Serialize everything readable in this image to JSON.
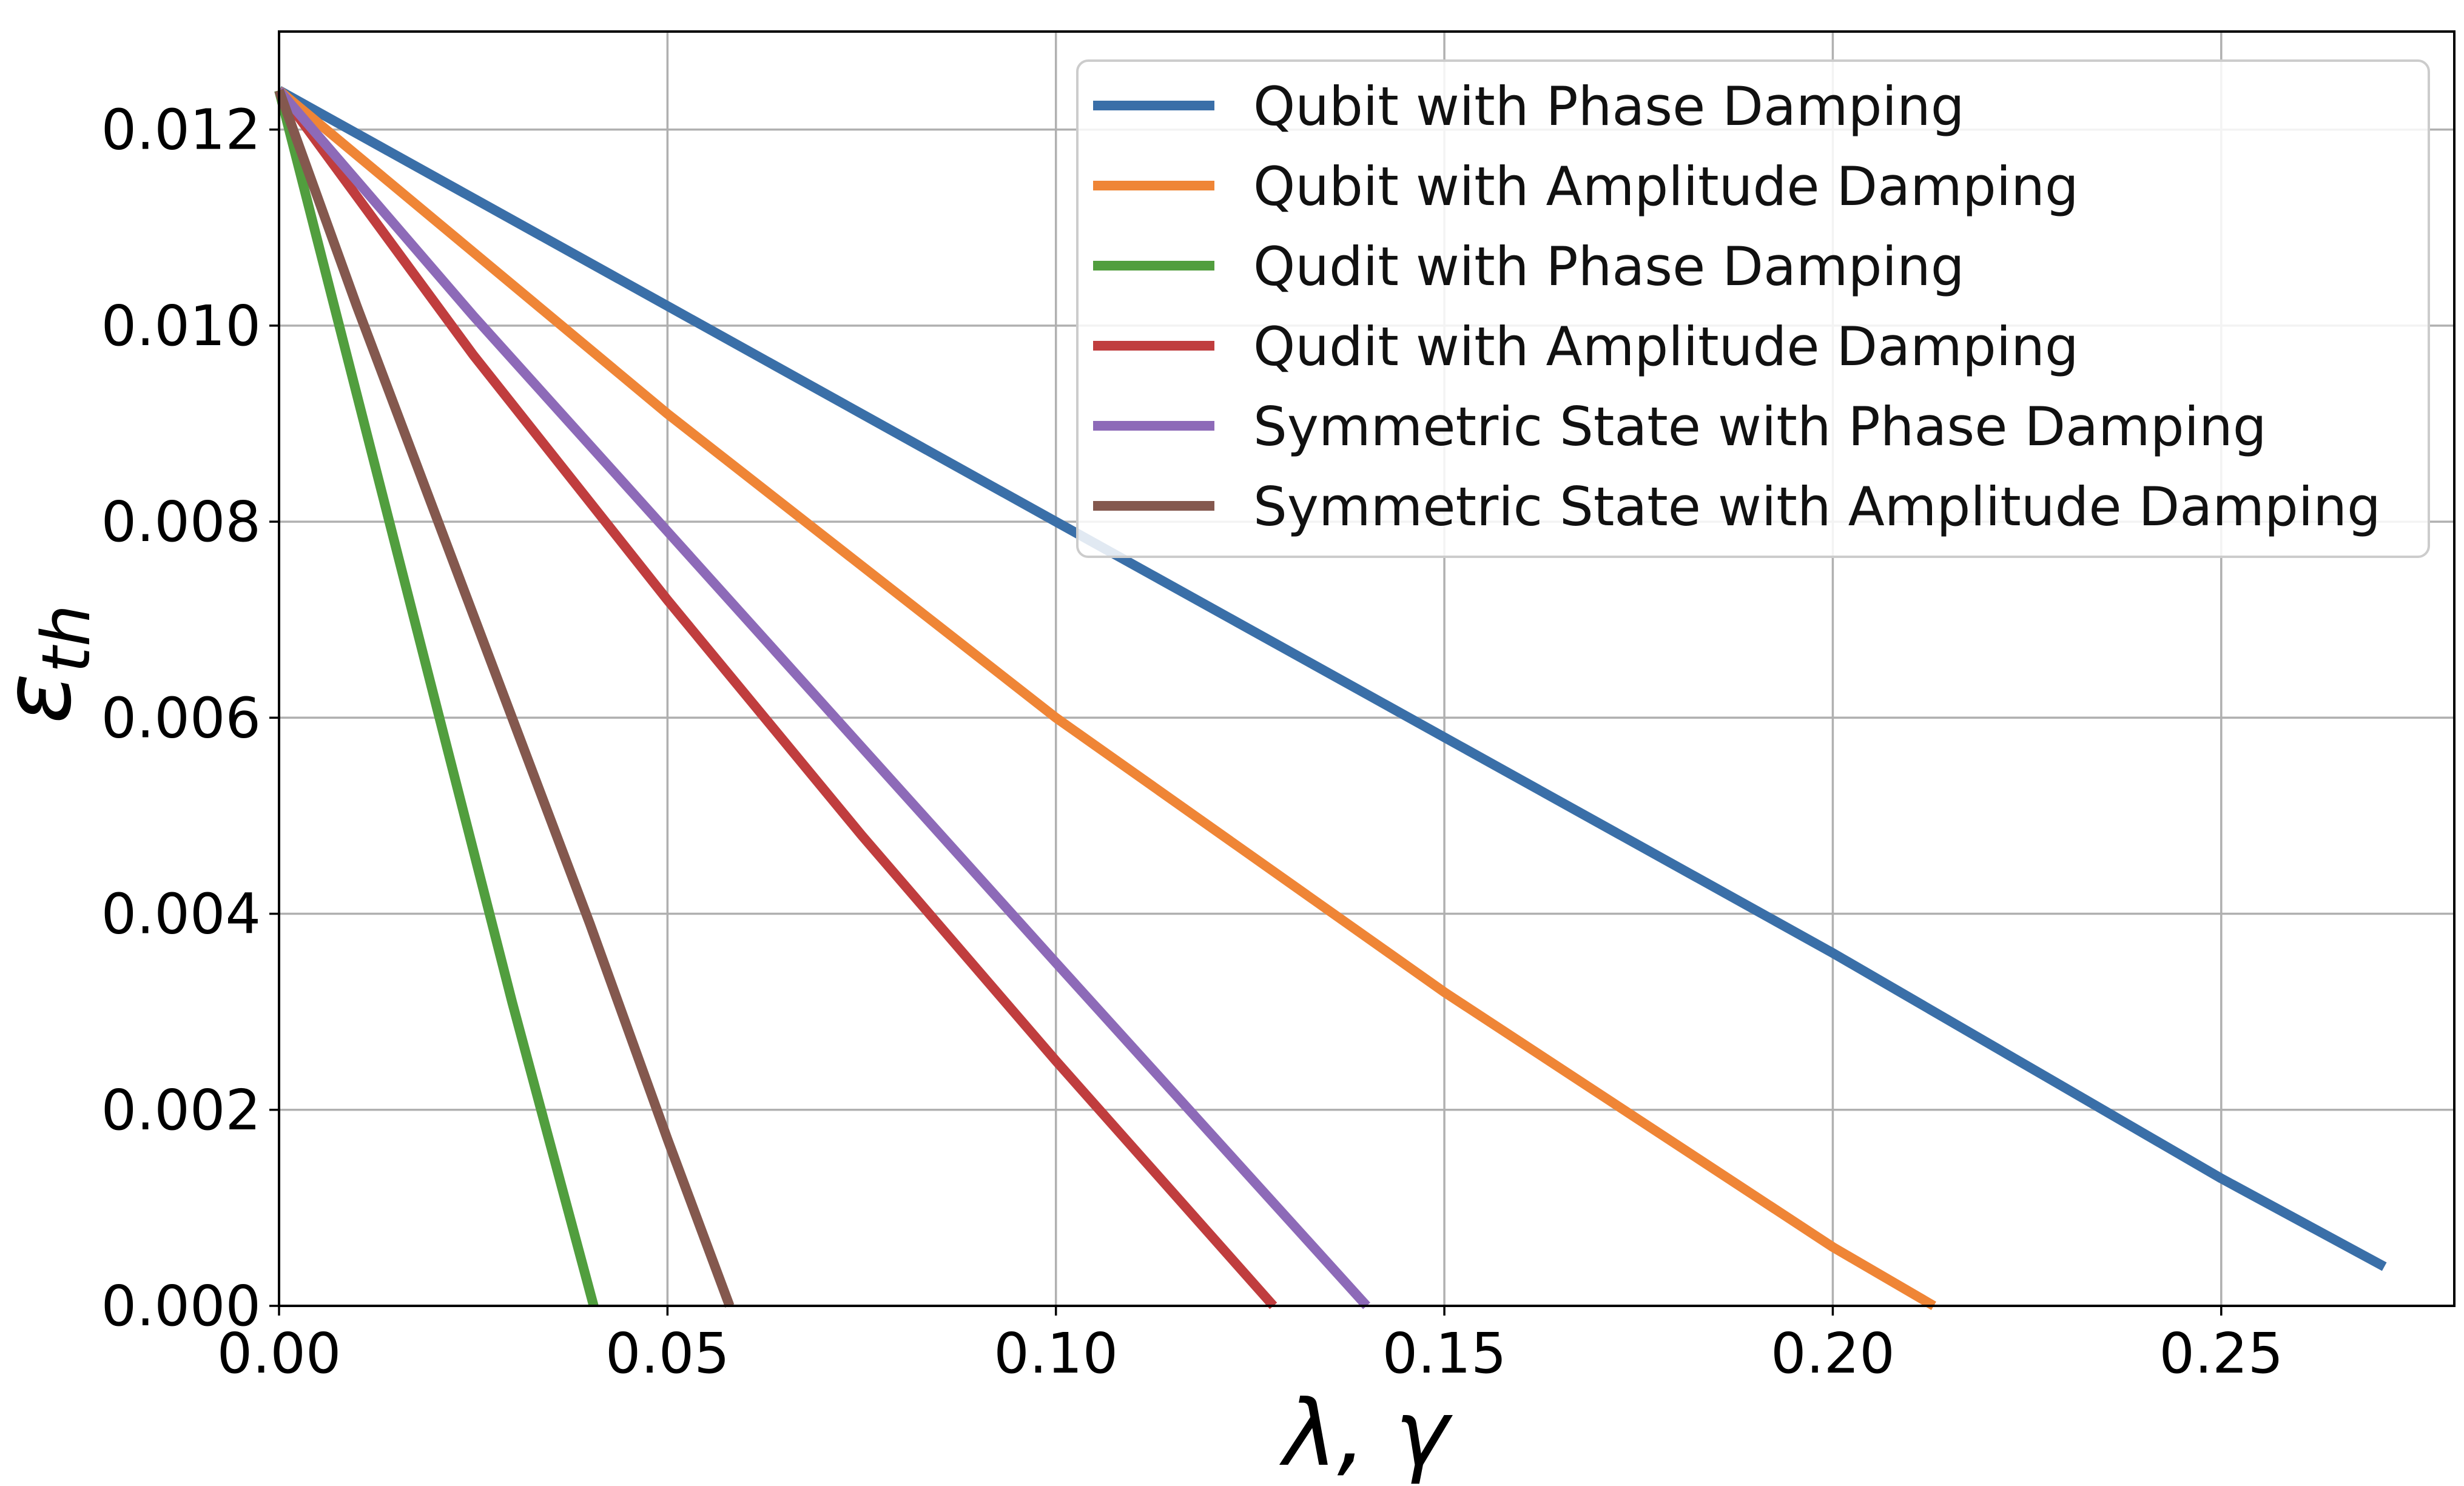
{
  "chart_data": {
    "type": "line",
    "title": "",
    "xlabel": "λ, γ",
    "ylabel": {
      "base": "ε",
      "sub": "th"
    },
    "xlim": [
      0,
      0.28
    ],
    "ylim": [
      0,
      0.013
    ],
    "xticks": [
      0.0,
      0.05,
      0.1,
      0.15,
      0.2,
      0.25
    ],
    "xtick_labels": [
      "0.00",
      "0.05",
      "0.10",
      "0.15",
      "0.20",
      "0.25"
    ],
    "yticks": [
      0.0,
      0.002,
      0.004,
      0.006,
      0.008,
      0.01,
      0.012
    ],
    "ytick_labels": [
      "0.000",
      "0.002",
      "0.004",
      "0.006",
      "0.008",
      "0.010",
      "0.012"
    ],
    "grid": true,
    "legend_position": "top-right",
    "series": [
      {
        "name": "Qubit with Phase Damping",
        "color": "#3a6fa8",
        "x": [
          0.0,
          0.05,
          0.1,
          0.15,
          0.2,
          0.25,
          0.271
        ],
        "y": [
          0.0124,
          0.0102,
          0.008,
          0.0058,
          0.0036,
          0.0013,
          0.0004
        ]
      },
      {
        "name": "Qubit with Amplitude Damping",
        "color": "#ef8536",
        "x": [
          0.0,
          0.05,
          0.1,
          0.15,
          0.2,
          0.213
        ],
        "y": [
          0.0124,
          0.0091,
          0.006,
          0.0032,
          0.0006,
          0.0
        ]
      },
      {
        "name": "Qudit with Phase Damping",
        "color": "#519e3e",
        "x": [
          0.0,
          0.01,
          0.02,
          0.03,
          0.0405
        ],
        "y": [
          0.0124,
          0.0093,
          0.0062,
          0.0031,
          0.0
        ]
      },
      {
        "name": "Qudit with Amplitude Damping",
        "color": "#c03d3e",
        "x": [
          0.0,
          0.025,
          0.05,
          0.075,
          0.1,
          0.128
        ],
        "y": [
          0.0124,
          0.0097,
          0.0072,
          0.0048,
          0.0025,
          0.0
        ]
      },
      {
        "name": "Symmetric State with Phase Damping",
        "color": "#8d6ab8",
        "x": [
          0.0,
          0.025,
          0.05,
          0.075,
          0.1,
          0.14
        ],
        "y": [
          0.0124,
          0.0101,
          0.0079,
          0.0057,
          0.0035,
          0.0
        ]
      },
      {
        "name": "Symmetric State with Amplitude Damping",
        "color": "#84584e",
        "x": [
          0.0,
          0.01,
          0.02,
          0.03,
          0.04,
          0.05,
          0.058
        ],
        "y": [
          0.0124,
          0.0102,
          0.0081,
          0.006,
          0.0039,
          0.0017,
          0.0
        ]
      }
    ]
  }
}
